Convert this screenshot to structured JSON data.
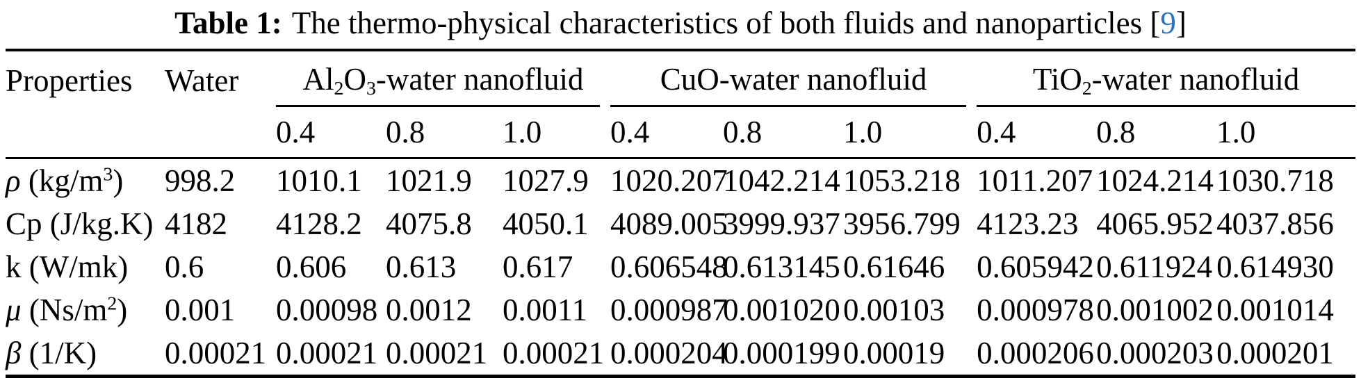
{
  "caption": {
    "label": "Table 1:",
    "text": "The thermo-physical characteristics of both fluids and nanoparticles",
    "bracket_open": "[",
    "citation": "9",
    "bracket_close": "]"
  },
  "colors": {
    "citation_blue": "#2a72c3",
    "text": "#000000",
    "background": "#ffffff",
    "rule": "#000000"
  },
  "header": {
    "properties": "Properties",
    "water": "Water",
    "groups": [
      {
        "label_rich": [
          {
            "t": "Al"
          },
          {
            "t": "2",
            "s": "sub"
          },
          {
            "t": "O"
          },
          {
            "t": "3",
            "s": "sub"
          },
          {
            "t": "-water nanofluid"
          }
        ],
        "fractions": [
          "0.4",
          "0.8",
          "1.0"
        ]
      },
      {
        "label_rich": [
          {
            "t": "CuO-water nanofluid"
          }
        ],
        "fractions": [
          "0.4",
          "0.8",
          "1.0"
        ]
      },
      {
        "label_rich": [
          {
            "t": "TiO"
          },
          {
            "t": "2",
            "s": "sub"
          },
          {
            "t": "-water nanofluid"
          }
        ],
        "fractions": [
          "0.4",
          "0.8",
          "1.0"
        ]
      }
    ]
  },
  "rows": [
    {
      "label_rich": [
        {
          "t": "ρ",
          "s": "i"
        },
        {
          "t": " (kg/m"
        },
        {
          "t": "3",
          "s": "sup"
        },
        {
          "t": ")"
        }
      ],
      "cells": [
        "998.2",
        "1010.1",
        "1021.9",
        "1027.9",
        "1020.207",
        "1042.214",
        "1053.218",
        "1011.207",
        "1024.214",
        "1030.718"
      ]
    },
    {
      "label_rich": [
        {
          "t": "Cp (J/kg.K)"
        }
      ],
      "cells": [
        "4182",
        "4128.2",
        "4075.8",
        "4050.1",
        "4089.005",
        "3999.937",
        "3956.799",
        "4123.23",
        "4065.952",
        "4037.856"
      ]
    },
    {
      "label_rich": [
        {
          "t": "k (W/mk)"
        }
      ],
      "cells": [
        "0.6",
        "0.606",
        "0.613",
        "0.617",
        "0.606548",
        "0.613145",
        "0.61646",
        "0.605942",
        "0.611924",
        "0.614930"
      ]
    },
    {
      "label_rich": [
        {
          "t": "μ",
          "s": "i"
        },
        {
          "t": " (Ns/m"
        },
        {
          "t": "2",
          "s": "sup"
        },
        {
          "t": ")"
        }
      ],
      "cells": [
        "0.001",
        "0.00098",
        "0.0012",
        "0.0011",
        "0.000987",
        "0.001020",
        "0.00103",
        "0.000978",
        "0.001002",
        "0.001014"
      ]
    },
    {
      "label_rich": [
        {
          "t": "β",
          "s": "i"
        },
        {
          "t": " (1/K)"
        }
      ],
      "cells": [
        "0.00021",
        "0.00021",
        "0.00021",
        "0.00021",
        "0.000204",
        "0.000199",
        "0.00019",
        "0.000206",
        "0.000203",
        "0.000201"
      ]
    }
  ]
}
